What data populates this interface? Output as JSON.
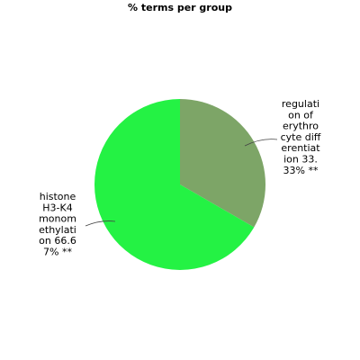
{
  "chart_data": {
    "type": "pie",
    "title": "% terms per group",
    "slices": [
      {
        "name": "regulation of erythrocyte differentiation",
        "value": 33.33,
        "label_lines": [
          "regulati",
          "on of",
          "erythro",
          "cyte diff",
          "erentiat",
          "ion 33.",
          "33% **"
        ],
        "color": "#7da567"
      },
      {
        "name": "histone H3-K4 monomethylation",
        "value": 66.67,
        "label_lines": [
          "histone",
          "H3-K4",
          "monom",
          "ethylati",
          "on 66.6",
          "7% **"
        ],
        "color": "#24f244"
      }
    ],
    "start_angle": "12 o'clock",
    "direction": "clockwise",
    "legend": "none"
  }
}
